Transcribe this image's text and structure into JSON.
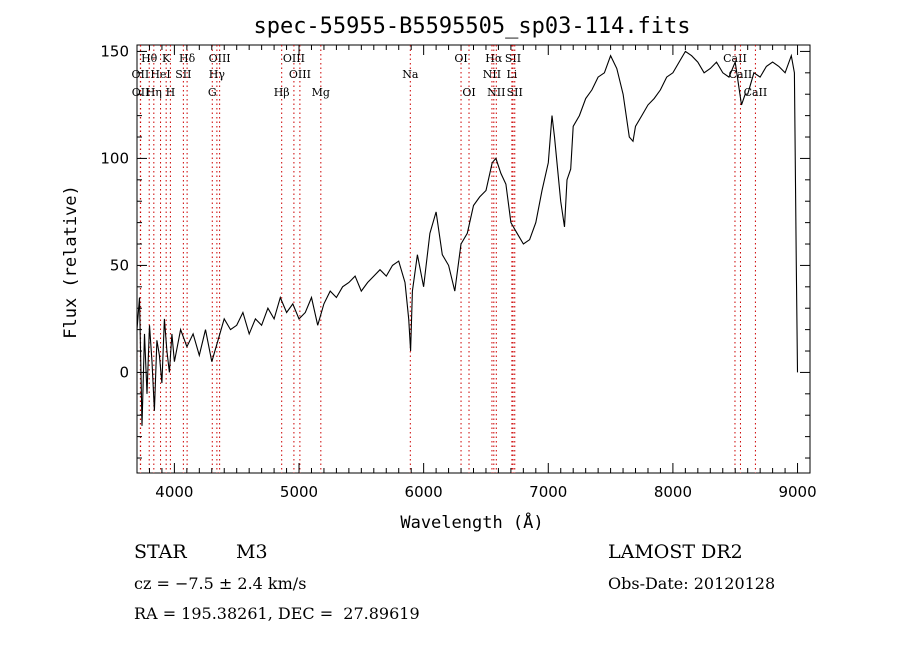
{
  "chart_data": {
    "type": "line",
    "title": "spec-55955-B5595505_sp03-114.fits",
    "xlabel": "Wavelength (Å)",
    "ylabel": "Flux (relative)",
    "xlim": [
      3700,
      9100
    ],
    "ylim": [
      -47,
      153
    ],
    "x_ticks": [
      4000,
      5000,
      6000,
      7000,
      8000,
      9000
    ],
    "y_ticks": [
      0,
      50,
      100,
      150
    ],
    "grid": false,
    "line_color": "#000000",
    "marker_color": "#cc0000",
    "series": [
      {
        "x": [
          3700,
          3720,
          3740,
          3760,
          3780,
          3800,
          3820,
          3840,
          3860,
          3880,
          3900,
          3920,
          3940,
          3960,
          3980,
          4000,
          4050,
          4100,
          4150,
          4200,
          4250,
          4300,
          4350,
          4400,
          4450,
          4500,
          4550,
          4600,
          4650,
          4700,
          4750,
          4800,
          4850,
          4900,
          4950,
          5000,
          5050,
          5100,
          5150,
          5200,
          5250,
          5300,
          5350,
          5400,
          5450,
          5500,
          5550,
          5600,
          5650,
          5700,
          5750,
          5800,
          5850,
          5880,
          5895,
          5910,
          5950,
          6000,
          6050,
          6100,
          6150,
          6200,
          6250,
          6300,
          6350,
          6400,
          6450,
          6500,
          6550,
          6580,
          6620,
          6660,
          6700,
          6750,
          6800,
          6850,
          6900,
          6950,
          7000,
          7030,
          7050,
          7100,
          7130,
          7150,
          7180,
          7200,
          7250,
          7300,
          7350,
          7400,
          7450,
          7500,
          7550,
          7600,
          7650,
          7680,
          7700,
          7750,
          7800,
          7850,
          7900,
          7950,
          8000,
          8050,
          8100,
          8150,
          8200,
          8250,
          8300,
          8350,
          8400,
          8450,
          8500,
          8550,
          8580,
          8600,
          8650,
          8700,
          8750,
          8800,
          8850,
          8900,
          8950,
          8975,
          8990,
          9000
        ],
        "y": [
          20,
          35,
          -25,
          18,
          -10,
          22,
          5,
          -18,
          15,
          8,
          -5,
          25,
          10,
          0,
          18,
          5,
          20,
          12,
          18,
          8,
          20,
          5,
          15,
          25,
          20,
          22,
          28,
          18,
          25,
          22,
          30,
          25,
          35,
          28,
          32,
          25,
          28,
          35,
          22,
          32,
          38,
          35,
          40,
          42,
          45,
          38,
          42,
          45,
          48,
          45,
          50,
          52,
          42,
          25,
          10,
          38,
          55,
          40,
          65,
          75,
          55,
          50,
          38,
          60,
          65,
          78,
          82,
          85,
          98,
          100,
          93,
          88,
          70,
          65,
          60,
          62,
          70,
          85,
          98,
          120,
          110,
          80,
          68,
          90,
          95,
          115,
          120,
          128,
          132,
          138,
          140,
          148,
          142,
          130,
          110,
          108,
          115,
          120,
          125,
          128,
          132,
          138,
          140,
          145,
          150,
          148,
          145,
          140,
          142,
          145,
          140,
          138,
          145,
          125,
          130,
          130,
          140,
          138,
          143,
          145,
          143,
          140,
          148,
          140,
          50,
          0
        ]
      }
    ],
    "line_markers": [
      {
        "label": "Hθ",
        "x": 3798,
        "row": 1,
        "color": "#cc0000"
      },
      {
        "label": "K",
        "x": 3934,
        "row": 1,
        "color": "#cc0000"
      },
      {
        "label": "Hδ",
        "x": 4102,
        "row": 1,
        "color": "#cc0000"
      },
      {
        "label": "OIII",
        "x": 4363,
        "row": 1,
        "color": "#cc0000"
      },
      {
        "label": "OIII",
        "x": 4959,
        "row": 1,
        "color": "#cc0000"
      },
      {
        "label": "OI",
        "x": 6300,
        "row": 1,
        "color": "#cc0000"
      },
      {
        "label": "Hα",
        "x": 6563,
        "row": 1,
        "color": "#cc0000"
      },
      {
        "label": "SII",
        "x": 6717,
        "row": 1,
        "color": "#cc0000"
      },
      {
        "label": "CaII",
        "x": 8498,
        "row": 1,
        "color": "#cc0000"
      },
      {
        "label": "OII",
        "x": 3727,
        "row": 2,
        "color": "#cc0000"
      },
      {
        "label": "HeI",
        "x": 3889,
        "row": 2,
        "color": "#cc0000"
      },
      {
        "label": "SII",
        "x": 4072,
        "row": 2,
        "color": "#cc0000"
      },
      {
        "label": "Hγ",
        "x": 4341,
        "row": 2,
        "color": "#cc0000"
      },
      {
        "label": "OIII",
        "x": 5007,
        "row": 2,
        "color": "#cc0000"
      },
      {
        "label": "Na",
        "x": 5893,
        "row": 2,
        "color": "#cc0000"
      },
      {
        "label": "NII",
        "x": 6548,
        "row": 2,
        "color": "#cc0000"
      },
      {
        "label": "Li",
        "x": 6708,
        "row": 2,
        "color": "#cc0000"
      },
      {
        "label": "CaII",
        "x": 8542,
        "row": 2,
        "color": "#cc0000"
      },
      {
        "label": "OII",
        "x": 3729,
        "row": 3,
        "color": "#cc0000"
      },
      {
        "label": "Hη",
        "x": 3835,
        "row": 3,
        "color": "#cc0000"
      },
      {
        "label": "H",
        "x": 3968,
        "row": 3,
        "color": "#cc0000"
      },
      {
        "label": "G",
        "x": 4304,
        "row": 3,
        "color": "#cc0000"
      },
      {
        "label": "Hβ",
        "x": 4861,
        "row": 3,
        "color": "#cc0000"
      },
      {
        "label": "Mg",
        "x": 5175,
        "row": 3,
        "color": "#cc0000"
      },
      {
        "label": "OI",
        "x": 6364,
        "row": 3,
        "color": "#cc0000"
      },
      {
        "label": "NII",
        "x": 6583,
        "row": 3,
        "color": "#cc0000"
      },
      {
        "label": "SII",
        "x": 6731,
        "row": 3,
        "color": "#cc0000"
      },
      {
        "label": "CaII",
        "x": 8662,
        "row": 3,
        "color": "#cc0000"
      }
    ]
  },
  "info": {
    "class_label": "STAR",
    "subclass": "M3",
    "redshift": "cz = −7.5 ± 2.4 km/s",
    "coords": "RA = 195.38261, DEC =  27.89619",
    "survey": "LAMOST DR2",
    "obs_date": "Obs-Date: 20120128"
  }
}
